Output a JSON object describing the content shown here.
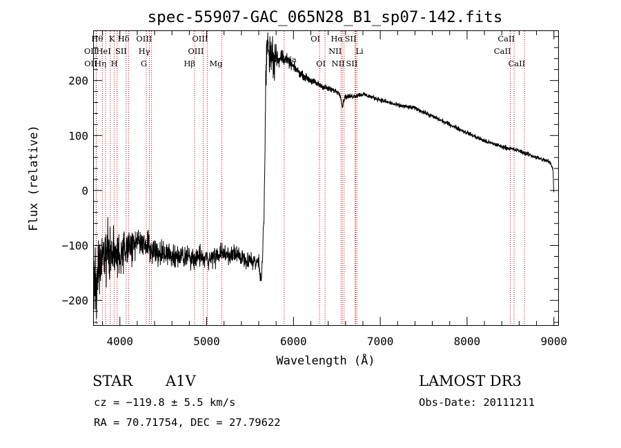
{
  "chart_data": {
    "type": "line",
    "title": "spec-55907-GAC_065N28_B1_sp07-142.fits",
    "xlabel": "Wavelength (Å)",
    "ylabel": "Flux (relative)",
    "xlim": [
      3700,
      9050
    ],
    "ylim": [
      -245,
      290
    ],
    "xticks": [
      4000,
      5000,
      6000,
      7000,
      8000,
      9000
    ],
    "yticks": [
      -200,
      -100,
      0,
      100,
      200
    ],
    "xminor_step": 200,
    "yminor_step": 20,
    "line_color": "#000000",
    "marker_color": "#cc0000",
    "spectrum_anchors": {
      "x": [
        3700,
        3750,
        3800,
        3850,
        3900,
        3950,
        4000,
        4050,
        4100,
        4150,
        4200,
        4300,
        4400,
        4500,
        4600,
        4800,
        5000,
        5200,
        5400,
        5500,
        5600,
        5630,
        5650,
        5660,
        5670,
        5680,
        5700,
        5720,
        5750,
        5780,
        5800,
        5830,
        5860,
        5900,
        6000,
        6100,
        6200,
        6300,
        6400,
        6500,
        6540,
        6562,
        6590,
        6700,
        6800,
        7000,
        7200,
        7400,
        7600,
        7800,
        8000,
        8200,
        8400,
        8600,
        8800,
        8950,
        8990,
        9000
      ],
      "y": [
        -180,
        -150,
        -130,
        -115,
        -110,
        -118,
        -125,
        -110,
        -100,
        -108,
        -90,
        -100,
        -110,
        -115,
        -118,
        -120,
        -125,
        -115,
        -120,
        -128,
        -130,
        -165,
        -90,
        -50,
        40,
        200,
        280,
        240,
        260,
        235,
        255,
        230,
        245,
        240,
        225,
        210,
        200,
        192,
        185,
        180,
        175,
        152,
        170,
        172,
        175,
        165,
        155,
        150,
        135,
        120,
        105,
        90,
        80,
        72,
        60,
        52,
        40,
        -5
      ]
    },
    "spectrum_noise": {
      "x": [
        3700,
        3800,
        3900,
        4000,
        4100,
        4200,
        4400,
        4600,
        5000,
        5500,
        5640,
        5680,
        5760,
        5800,
        5900,
        6000,
        6300,
        6600,
        7000,
        9000
      ],
      "amp": [
        60,
        55,
        45,
        42,
        35,
        28,
        24,
        22,
        18,
        15,
        14,
        30,
        55,
        20,
        12,
        8,
        6,
        5,
        4,
        4
      ]
    },
    "lines": [
      {
        "label": "Hθ",
        "x": 3798,
        "row": 0,
        "side": "left"
      },
      {
        "label": "K",
        "x": 3934,
        "row": 0,
        "side": "left"
      },
      {
        "label": "Hδ",
        "x": 4102,
        "row": 0,
        "side": "left"
      },
      {
        "label": "OIII",
        "x": 4363,
        "row": 0,
        "side": "left"
      },
      {
        "label": "OIII",
        "x": 5007,
        "row": 0,
        "side": "left"
      },
      {
        "label": "OI",
        "x": 6300,
        "row": 0,
        "side": "left"
      },
      {
        "label": "Hα",
        "x": 6563,
        "row": 0,
        "side": "left"
      },
      {
        "label": "SII",
        "x": 6717,
        "row": 0,
        "side": "left"
      },
      {
        "label": "CaII",
        "x": 8542,
        "row": 0,
        "side": "left"
      },
      {
        "label": "OII",
        "x": 3727,
        "row": 1,
        "side": "left"
      },
      {
        "label": "HeI",
        "x": 3889,
        "row": 1,
        "side": "left"
      },
      {
        "label": "SII",
        "x": 4072,
        "row": 1,
        "side": "left"
      },
      {
        "label": "Hγ",
        "x": 4340,
        "row": 1,
        "side": "left"
      },
      {
        "label": "OIII",
        "x": 4959,
        "row": 1,
        "side": "left"
      },
      {
        "label": "NII",
        "x": 6548,
        "row": 1,
        "side": "left"
      },
      {
        "label": "Li",
        "x": 6708,
        "row": 1,
        "side": "right"
      },
      {
        "label": "CaII",
        "x": 8498,
        "row": 1,
        "side": "left"
      },
      {
        "label": "OII",
        "x": 3729,
        "row": 2,
        "side": "left"
      },
      {
        "label": "Hη",
        "x": 3835,
        "row": 2,
        "side": "left"
      },
      {
        "label": "H",
        "x": 3968,
        "row": 2,
        "side": "left"
      },
      {
        "label": "G",
        "x": 4305,
        "row": 2,
        "side": "left"
      },
      {
        "label": "Hβ",
        "x": 4861,
        "row": 2,
        "side": "left"
      },
      {
        "label": "Mg",
        "x": 5175,
        "row": 2,
        "side": "left"
      },
      {
        "label": "Na",
        "x": 5893,
        "row": 0,
        "side": "right",
        "y_offset": 30
      },
      {
        "label": "OI",
        "x": 6364,
        "row": 2,
        "side": "left"
      },
      {
        "label": "NII",
        "x": 6583,
        "row": 2,
        "side": "left"
      },
      {
        "label": "SII",
        "x": 6731,
        "row": 2,
        "side": "left"
      },
      {
        "label": "CaII",
        "x": 8662,
        "row": 2,
        "side": "left"
      }
    ]
  },
  "info": {
    "class": "STAR",
    "subclass": "A1V",
    "survey": "LAMOST DR3",
    "cz": "cz = −119.8 ± 5.5 km/s",
    "obs_date": "Obs-Date: 20111211",
    "coords": "RA =  70.71754, DEC =  27.79622"
  }
}
